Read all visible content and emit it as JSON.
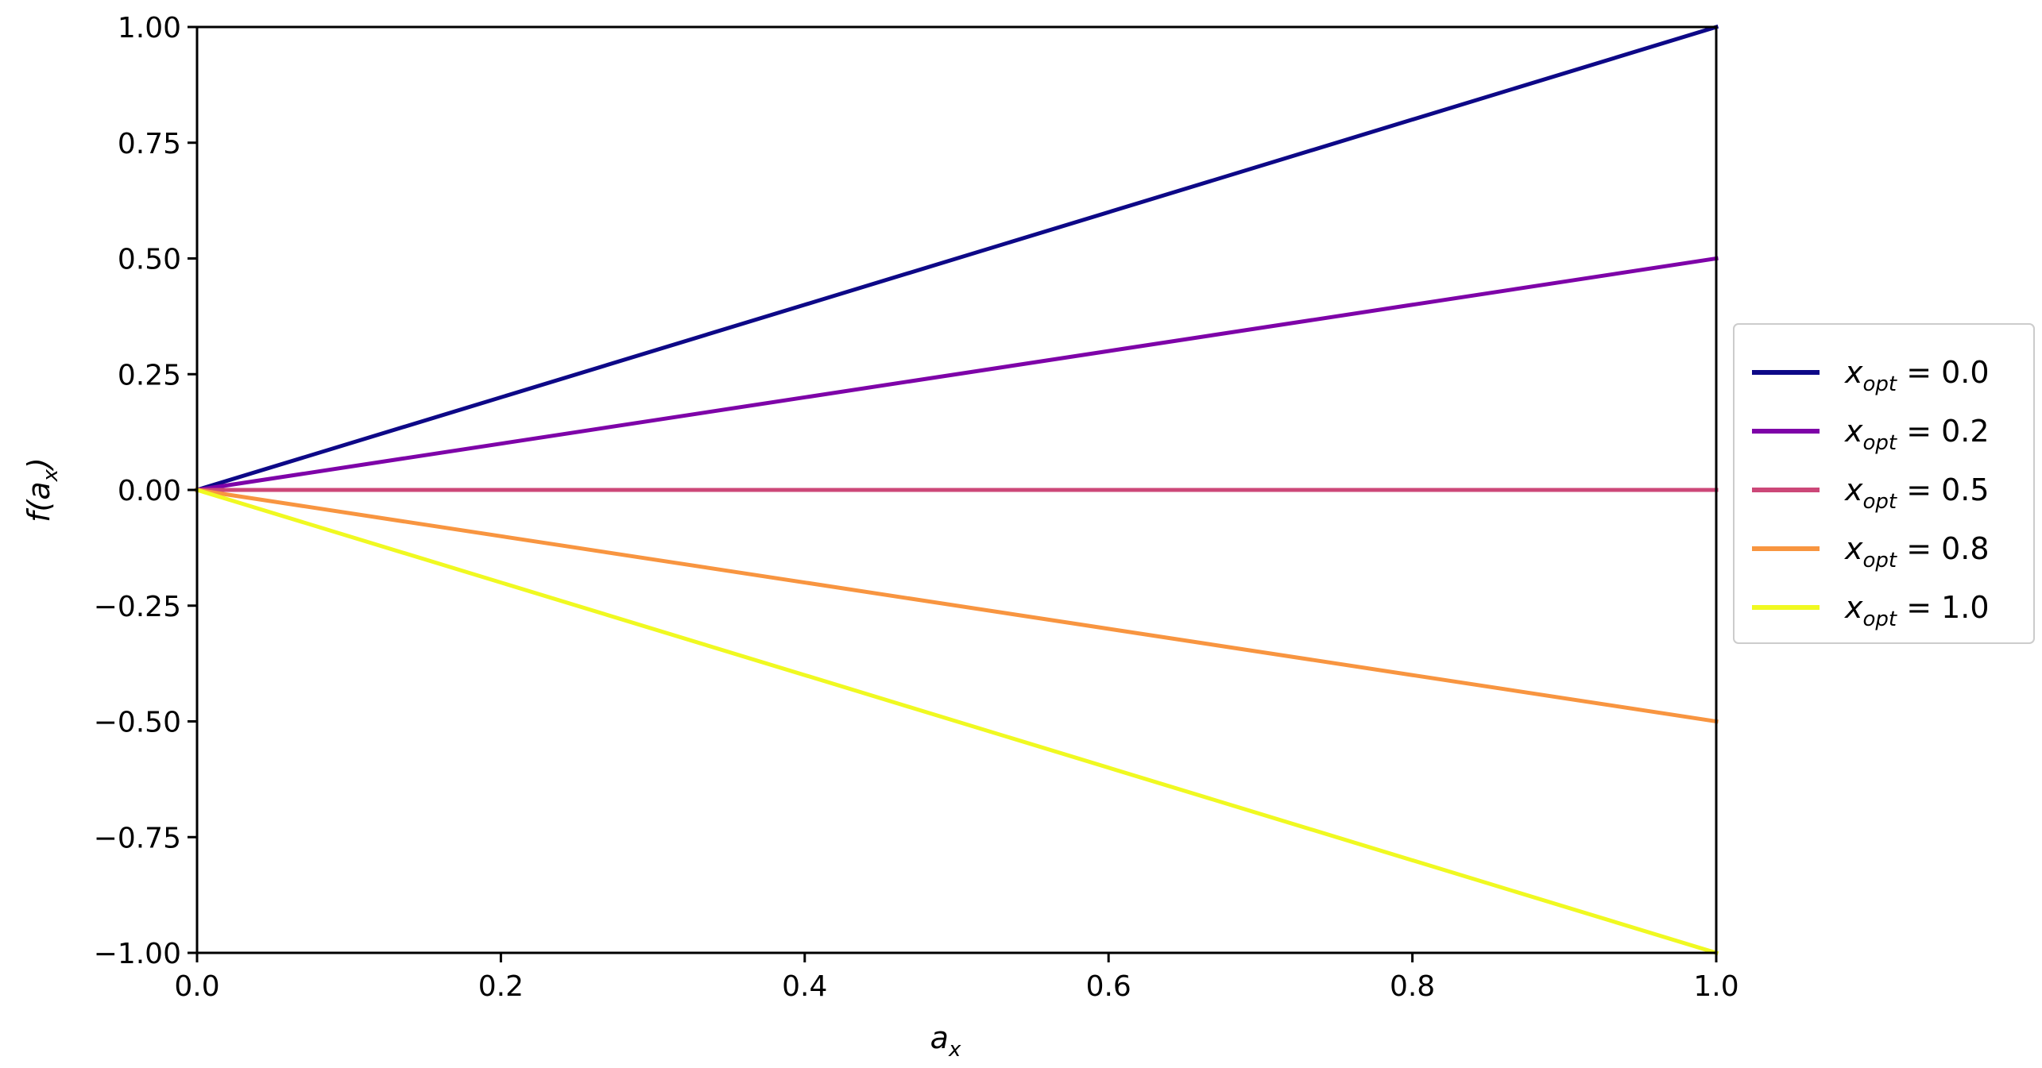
{
  "chart_data": {
    "type": "line",
    "title": "",
    "xlabel": "a",
    "xlabel_sub": "x",
    "ylabel_prefix": "f(a",
    "ylabel_sub": "x",
    "ylabel_suffix": ")",
    "xlim": [
      0.0,
      1.0
    ],
    "ylim": [
      -1.0,
      1.0
    ],
    "xticks": [
      "0.0",
      "0.2",
      "0.4",
      "0.6",
      "0.8",
      "1.0"
    ],
    "yticks": [
      "1.00",
      "0.75",
      "0.50",
      "0.25",
      "0.00",
      "−0.25",
      "−0.50",
      "−0.75",
      "−1.00"
    ],
    "xtick_values": [
      0.0,
      0.2,
      0.4,
      0.6,
      0.8,
      1.0
    ],
    "ytick_values": [
      1.0,
      0.75,
      0.5,
      0.25,
      0.0,
      -0.25,
      -0.5,
      -0.75,
      -1.0
    ],
    "grid": false,
    "legend_position": "right-outside",
    "series": [
      {
        "name": "x_opt = 0.0",
        "legend_main": "x",
        "legend_sub": "opt",
        "legend_rest": " = 0.0",
        "color": "#0d0887",
        "x": [
          0.0,
          1.0
        ],
        "y": [
          0.0,
          1.0
        ]
      },
      {
        "name": "x_opt = 0.2",
        "legend_main": "x",
        "legend_sub": "opt",
        "legend_rest": " = 0.2",
        "color": "#7e03a8",
        "x": [
          0.0,
          1.0
        ],
        "y": [
          0.0,
          0.5
        ]
      },
      {
        "name": "x_opt = 0.5",
        "legend_main": "x",
        "legend_sub": "opt",
        "legend_rest": " = 0.5",
        "color": "#cc4778",
        "x": [
          0.0,
          1.0
        ],
        "y": [
          0.0,
          0.0
        ]
      },
      {
        "name": "x_opt = 0.8",
        "legend_main": "x",
        "legend_sub": "opt",
        "legend_rest": " = 0.8",
        "color": "#f89540",
        "x": [
          0.0,
          1.0
        ],
        "y": [
          0.0,
          -0.5
        ]
      },
      {
        "name": "x_opt = 1.0",
        "legend_main": "x",
        "legend_sub": "opt",
        "legend_rest": " = 1.0",
        "color": "#f0f921",
        "x": [
          0.0,
          1.0
        ],
        "y": [
          0.0,
          -1.0
        ]
      }
    ]
  }
}
